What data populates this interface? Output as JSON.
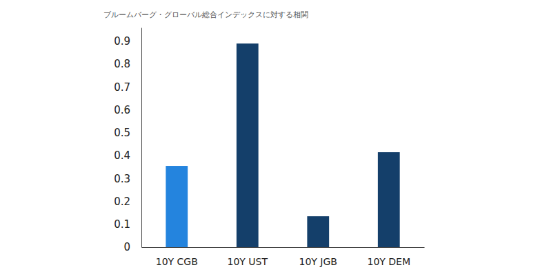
{
  "chart_data": {
    "type": "bar",
    "title": "ブルームバーグ・グローバル総合インデックスに対する相関",
    "categories": [
      "10Y CGB",
      "10Y UST",
      "10Y JGB",
      "10Y DEM"
    ],
    "values": [
      0.355,
      0.89,
      0.135,
      0.415
    ],
    "colors": [
      "#2484de",
      "#143f6a",
      "#143f6a",
      "#143f6a"
    ],
    "ylim": [
      0,
      0.96
    ],
    "yticks": [
      0,
      0.1,
      0.2,
      0.3,
      0.4,
      0.5,
      0.6,
      0.7,
      0.8,
      0.9
    ],
    "grid": false
  }
}
